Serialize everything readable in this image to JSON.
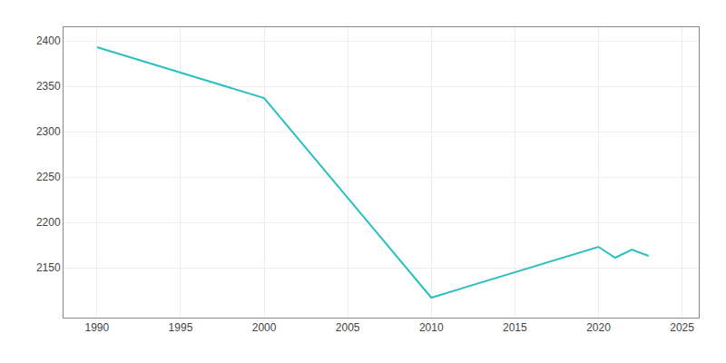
{
  "chart_data": {
    "type": "line",
    "x": [
      1990,
      2000,
      2010,
      2020,
      2021,
      2022,
      2023
    ],
    "values": [
      2393,
      2337,
      2117,
      2173,
      2161,
      2170,
      2163
    ],
    "color": "#2bbfbf",
    "xlim": [
      1988,
      2026
    ],
    "ylim": [
      2095,
      2415
    ],
    "xticks": [
      1990,
      1995,
      2000,
      2005,
      2010,
      2015,
      2020,
      2025
    ],
    "yticks": [
      2150,
      2200,
      2250,
      2300,
      2350,
      2400
    ],
    "grid": true
  }
}
